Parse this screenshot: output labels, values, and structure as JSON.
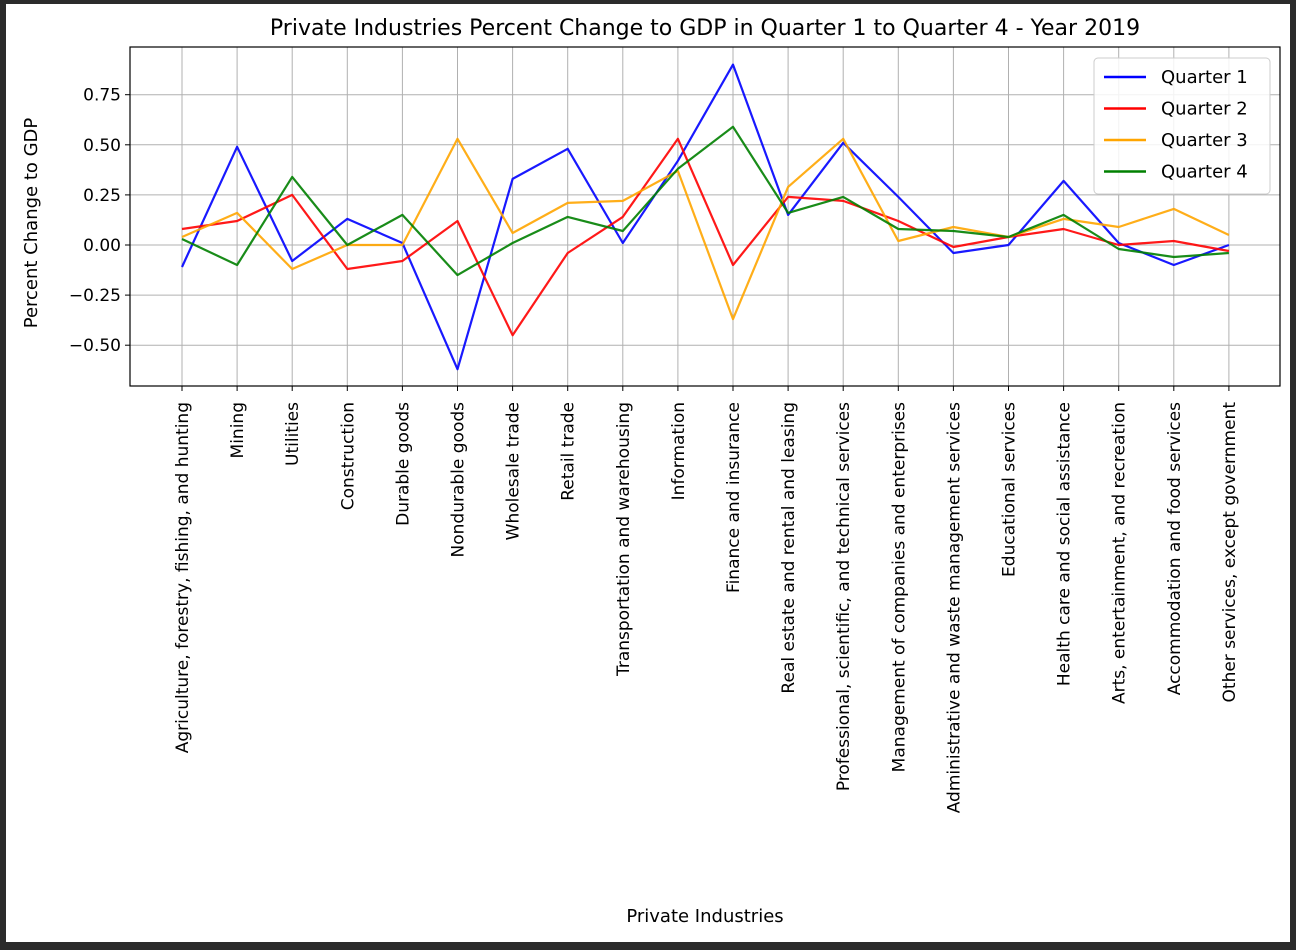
{
  "chart_data": {
    "type": "line",
    "title": "Private Industries Percent Change to GDP in Quarter 1 to Quarter 4 - Year 2019",
    "xlabel": "Private Industries",
    "ylabel": "Percent Change to GDP",
    "ylim": [
      -0.7,
      0.95
    ],
    "yticks": [
      -0.5,
      -0.25,
      0.0,
      0.25,
      0.5,
      0.75
    ],
    "ytick_labels": [
      "−0.50",
      "−0.25",
      "0.00",
      "0.25",
      "0.50",
      "0.75"
    ],
    "grid": true,
    "legend_position": "top-right",
    "categories": [
      "Agriculture, forestry, fishing, and hunting",
      "Mining",
      "Utilities",
      "Construction",
      "Durable goods",
      "Nondurable goods",
      "Wholesale trade",
      "Retail trade",
      "Transportation and warehousing",
      "Information",
      "Finance and insurance",
      "Real estate and rental and leasing",
      "Professional, scientific, and technical services",
      "Management of companies and enterprises",
      "Administrative and waste management services",
      "Educational services",
      "Health care and social assistance",
      "Arts, entertainment, and recreation",
      "Accommodation and food services",
      "Other services, except government"
    ],
    "series": [
      {
        "name": "Quarter 1",
        "color": "#0000ff",
        "values": [
          -0.11,
          0.49,
          -0.08,
          0.13,
          0.01,
          -0.62,
          0.33,
          0.48,
          0.01,
          0.42,
          0.9,
          0.15,
          0.51,
          0.24,
          -0.04,
          0.0,
          0.32,
          0.01,
          -0.1,
          0.0
        ]
      },
      {
        "name": "Quarter 2",
        "color": "#ff0000",
        "values": [
          0.08,
          0.12,
          0.25,
          -0.12,
          -0.08,
          0.12,
          -0.45,
          -0.04,
          0.14,
          0.53,
          -0.1,
          0.24,
          0.22,
          0.12,
          -0.01,
          0.04,
          0.08,
          0.0,
          0.02,
          -0.03
        ]
      },
      {
        "name": "Quarter 3",
        "color": "#ffa500",
        "values": [
          0.04,
          0.16,
          -0.12,
          0.0,
          0.0,
          0.53,
          0.06,
          0.21,
          0.22,
          0.37,
          -0.37,
          0.29,
          0.53,
          0.02,
          0.09,
          0.04,
          0.13,
          0.09,
          0.18,
          0.05
        ]
      },
      {
        "name": "Quarter 4",
        "color": "#008000",
        "values": [
          0.03,
          -0.1,
          0.34,
          0.0,
          0.15,
          -0.15,
          0.01,
          0.14,
          0.07,
          0.38,
          0.59,
          0.16,
          0.24,
          0.08,
          0.07,
          0.04,
          0.15,
          -0.02,
          -0.06,
          -0.04
        ]
      }
    ]
  }
}
